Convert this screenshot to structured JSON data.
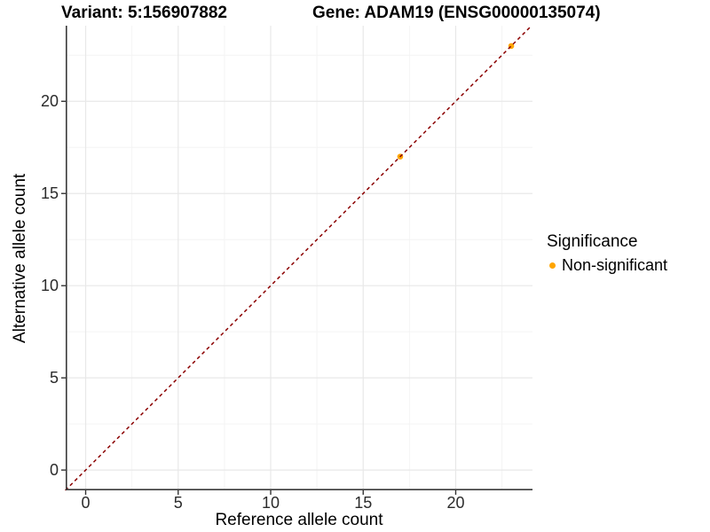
{
  "header": {
    "variant_title": "Variant: 5:156907882",
    "gene_title": "Gene: ADAM19 (ENSG00000135074)"
  },
  "axes": {
    "x_label": "Reference allele count",
    "y_label": "Alternative allele count"
  },
  "legend": {
    "title": "Significance",
    "items": [
      {
        "label": "Non-significant",
        "color": "#FFA500"
      }
    ]
  },
  "colors": {
    "point": "#FFA500",
    "reference_line": "#8B0000",
    "major_grid": "#E8E8E8",
    "minor_grid": "#F4F4F4",
    "axis_line": "#3a3a3a",
    "tick_mark": "#333333",
    "tick_text": "#2b2b2b",
    "background": "#FFFFFF"
  },
  "chart_data": {
    "type": "scatter",
    "title": "Variant: 5:156907882   Gene: ADAM19 (ENSG00000135074)",
    "xlabel": "Reference allele count",
    "ylabel": "Alternative allele count",
    "xlim": [
      -1.08,
      24.15
    ],
    "ylim": [
      -1.1,
      24.1
    ],
    "x_ticks": [
      0,
      5,
      10,
      15,
      20
    ],
    "y_ticks": [
      0,
      5,
      10,
      15,
      20
    ],
    "x_minor_gridlines": [
      2.5,
      7.5,
      12.5,
      17.5,
      22.5
    ],
    "y_minor_gridlines": [
      2.5,
      7.5,
      12.5,
      17.5,
      22.5
    ],
    "grid": "major+minor",
    "legend_position": "right",
    "series": [
      {
        "name": "Non-significant",
        "color": "#FFA500",
        "marker": "circle",
        "marker_radius": 3.3,
        "points": [
          [
            17,
            17
          ],
          [
            23,
            23
          ]
        ]
      }
    ],
    "reference_line": {
      "equation": "y = x",
      "style": "dashed",
      "color": "#8B0000",
      "from": [
        -1.1,
        -1.1
      ],
      "to": [
        24.1,
        24.1
      ]
    }
  }
}
